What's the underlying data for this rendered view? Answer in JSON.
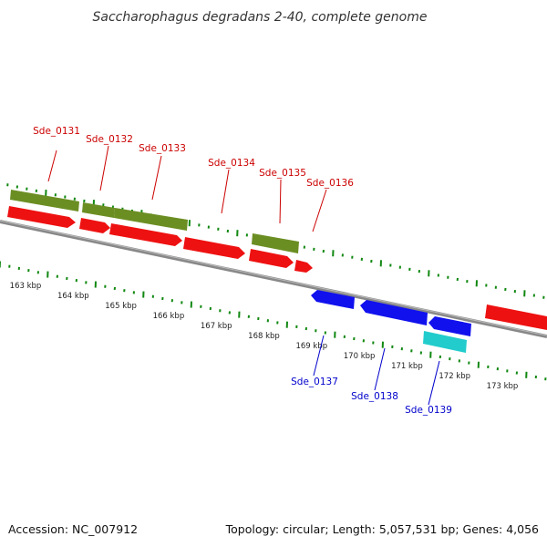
{
  "title": "Saccharophagus degradans 2-40, complete genome",
  "footer": {
    "accession": "Accession: NC_007912",
    "summary": "Topology: circular; Length: 5,057,531 bp; Genes: 4,056"
  },
  "colors": {
    "forward_gene": "#ee1111",
    "reverse_gene": "#1111ee",
    "forward_product": "#6b8e23",
    "reverse_product": "#22cccc",
    "backbone": "#888888",
    "ticks": "#118811",
    "forward_label": "#cc0000",
    "reverse_label": "#0000cc"
  },
  "scale": {
    "unit": "kbp",
    "labels": [
      "163 kbp",
      "164 kbp",
      "165 kbp",
      "166 kbp",
      "167 kbp",
      "168 kbp",
      "169 kbp",
      "170 kbp",
      "171 kbp",
      "172 kbp",
      "173 kbp"
    ]
  },
  "features": {
    "forward_genes": [
      {
        "label": "Sde_0131"
      },
      {
        "label": "Sde_0132"
      },
      {
        "label": "Sde_0133"
      },
      {
        "label": "Sde_0134"
      },
      {
        "label": "Sde_0135"
      },
      {
        "label": "Sde_0136"
      },
      {
        "label": ""
      }
    ],
    "reverse_genes": [
      {
        "label": "Sde_0137"
      },
      {
        "label": "Sde_0138"
      },
      {
        "label": "Sde_0139"
      }
    ]
  }
}
